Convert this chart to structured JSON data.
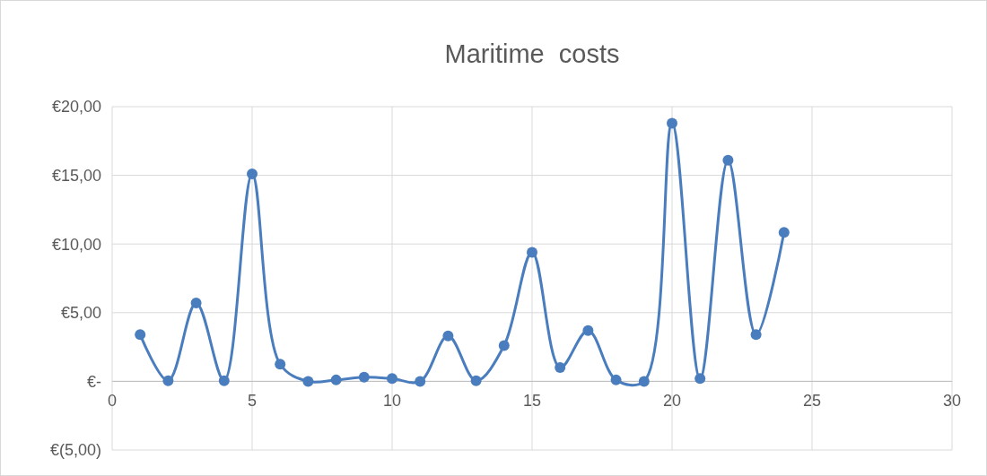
{
  "chart_data": {
    "type": "line",
    "title": "Maritime  costs",
    "x": [
      1,
      2,
      3,
      4,
      5,
      6,
      7,
      8,
      9,
      10,
      11,
      12,
      13,
      14,
      15,
      16,
      17,
      18,
      19,
      20,
      21,
      22,
      23,
      24
    ],
    "series": [
      {
        "color": "#4a7dbd",
        "values": [
          3.4,
          0.05,
          5.7,
          0.05,
          15.1,
          1.25,
          0,
          0.1,
          0.3,
          0.2,
          0,
          3.3,
          0.05,
          2.6,
          9.4,
          1.0,
          3.7,
          0.1,
          0,
          18.8,
          0.2,
          16.1,
          3.4,
          10.85
        ]
      }
    ],
    "xlim": [
      0,
      30
    ],
    "xticks": [
      0,
      5,
      10,
      15,
      20,
      25,
      30
    ],
    "ylim": [
      -5,
      20
    ],
    "yticks": [
      {
        "value": -5,
        "label": "€(5,00)"
      },
      {
        "value": 0,
        "label": "€-"
      },
      {
        "value": 5,
        "label": "€5,00"
      },
      {
        "value": 10,
        "label": "€10,00"
      },
      {
        "value": 15,
        "label": "€15,00"
      },
      {
        "value": 20,
        "label": "€20,00"
      }
    ],
    "grid": true,
    "marker": "circle",
    "line_style": "solid"
  }
}
